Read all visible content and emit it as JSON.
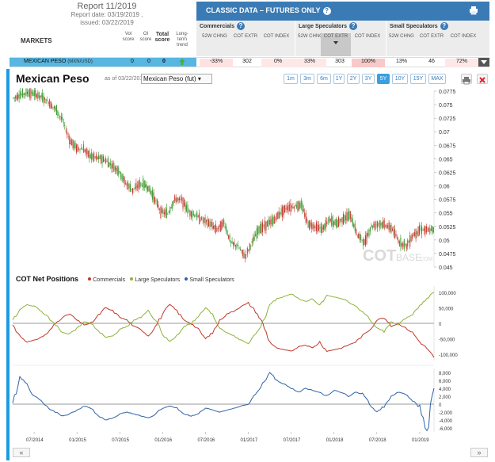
{
  "report": {
    "title": "Report 11/2019",
    "report_date": "Report date: 03/19/2019 ,",
    "issued": "issued: 03/22/2019"
  },
  "markets_label": "MARKETS",
  "score_headers": {
    "vol": "Vol score",
    "oi": "OI score",
    "total": "Total score",
    "trend": "Long-term trend"
  },
  "classic_bar": {
    "title": "CLASSIC DATA – FUTURES ONLY"
  },
  "categories": [
    {
      "title": "Commercials",
      "cols": [
        "52W CHNG",
        "COT EXTR",
        "COT INDEX"
      ]
    },
    {
      "title": "Large Speculators",
      "cols": [
        "52W CHNG",
        "COT EXTR",
        "COT INDEX"
      ]
    },
    {
      "title": "Small Speculators",
      "cols": [
        "52W CHNG",
        "COT EXTR",
        "COT INDEX"
      ]
    }
  ],
  "row": {
    "name": "MEXICAN PESO",
    "sub": "(MXN/USD)",
    "vol": "0",
    "oi": "0",
    "total": "0",
    "cells": [
      "-33%",
      "302",
      "0%",
      "33%",
      "303",
      "100%",
      "13%",
      "46",
      "72%"
    ]
  },
  "chart_header": {
    "title": "Mexican Peso",
    "as_of": "as of 03/22/2019",
    "symbol": "Mexican Peso (fut)",
    "ranges": [
      "1m",
      "3m",
      "6m",
      "1Y",
      "2Y",
      "3Y",
      "5Y",
      "10Y",
      "15Y",
      "MAX"
    ],
    "active_range": "5Y"
  },
  "legend": {
    "title": "COT Net Positions",
    "items": [
      "Commercials",
      "Large Speculators",
      "Small Speculators"
    ]
  },
  "watermark": {
    "brand": "COT",
    "suffix": "BASE",
    "domain": ".COM"
  },
  "colors": {
    "commercials": "#c0392b",
    "large_spec": "#8db33a",
    "small_spec": "#2e62a8",
    "accent": "#1e9be0",
    "candle_up": "#3a9a2e",
    "candle_down": "#c0392b"
  },
  "chart_data": [
    {
      "type": "line",
      "title": "Mexican Peso",
      "note": "price candlesticks (approximate close values)",
      "x": [
        "2014-04",
        "2014-05",
        "2014-06",
        "2014-07",
        "2014-08",
        "2014-09",
        "2014-10",
        "2014-11",
        "2014-12",
        "2015-01",
        "2015-02",
        "2015-03",
        "2015-04",
        "2015-05",
        "2015-06",
        "2015-07",
        "2015-08",
        "2015-09",
        "2015-10",
        "2015-11",
        "2015-12",
        "2016-01",
        "2016-02",
        "2016-03",
        "2016-04",
        "2016-05",
        "2016-06",
        "2016-07",
        "2016-08",
        "2016-09",
        "2016-10",
        "2016-11",
        "2016-12",
        "2017-01",
        "2017-02",
        "2017-03",
        "2017-04",
        "2017-05",
        "2017-06",
        "2017-07",
        "2017-08",
        "2017-09",
        "2017-10",
        "2017-11",
        "2017-12",
        "2018-01",
        "2018-02",
        "2018-03",
        "2018-04",
        "2018-05",
        "2018-06",
        "2018-07",
        "2018-08",
        "2018-09",
        "2018-10",
        "2018-11",
        "2018-12",
        "2019-01",
        "2019-02",
        "2019-03"
      ],
      "series": [
        {
          "values": [
            0.0762,
            0.0768,
            0.0772,
            0.077,
            0.0764,
            0.0755,
            0.0742,
            0.0722,
            0.0685,
            0.067,
            0.0668,
            0.0655,
            0.0652,
            0.0648,
            0.0638,
            0.0628,
            0.0605,
            0.0592,
            0.0603,
            0.06,
            0.058,
            0.0553,
            0.0548,
            0.0575,
            0.0574,
            0.0552,
            0.0545,
            0.0537,
            0.053,
            0.052,
            0.0532,
            0.0495,
            0.0488,
            0.047,
            0.0495,
            0.052,
            0.0528,
            0.0535,
            0.055,
            0.056,
            0.0562,
            0.0565,
            0.053,
            0.0525,
            0.052,
            0.0537,
            0.053,
            0.054,
            0.0545,
            0.051,
            0.0495,
            0.0525,
            0.053,
            0.0528,
            0.052,
            0.0495,
            0.049,
            0.051,
            0.052,
            0.0518
          ]
        }
      ],
      "ylim": [
        0.045,
        0.0775
      ],
      "yticks": [
        0.0775,
        0.075,
        0.0725,
        0.07,
        0.0675,
        0.065,
        0.0625,
        0.06,
        0.0575,
        0.055,
        0.0525,
        0.05,
        0.0475,
        0.045
      ]
    },
    {
      "type": "line",
      "title": "COT Net Positions",
      "x": [
        "2014-04",
        "2014-05",
        "2014-06",
        "2014-07",
        "2014-08",
        "2014-09",
        "2014-10",
        "2014-11",
        "2014-12",
        "2015-01",
        "2015-02",
        "2015-03",
        "2015-04",
        "2015-05",
        "2015-06",
        "2015-07",
        "2015-08",
        "2015-09",
        "2015-10",
        "2015-11",
        "2015-12",
        "2016-01",
        "2016-02",
        "2016-03",
        "2016-04",
        "2016-05",
        "2016-06",
        "2016-07",
        "2016-08",
        "2016-09",
        "2016-10",
        "2016-11",
        "2016-12",
        "2017-01",
        "2017-02",
        "2017-03",
        "2017-04",
        "2017-05",
        "2017-06",
        "2017-07",
        "2017-08",
        "2017-09",
        "2017-10",
        "2017-11",
        "2017-12",
        "2018-01",
        "2018-02",
        "2018-03",
        "2018-04",
        "2018-05",
        "2018-06",
        "2018-07",
        "2018-08",
        "2018-09",
        "2018-10",
        "2018-11",
        "2018-12",
        "2019-01",
        "2019-02",
        "2019-03"
      ],
      "series": [
        {
          "name": "Commercials",
          "values": [
            -5000,
            -40000,
            -60000,
            -55000,
            -45000,
            -30000,
            0,
            20000,
            30000,
            10000,
            -5000,
            0,
            25000,
            50000,
            40000,
            20000,
            10000,
            -10000,
            -20000,
            -40000,
            -10000,
            30000,
            60000,
            40000,
            10000,
            0,
            -20000,
            -50000,
            -30000,
            10000,
            30000,
            40000,
            55000,
            65000,
            40000,
            0,
            -60000,
            -80000,
            -85000,
            -90000,
            -75000,
            -70000,
            -80000,
            -60000,
            -90000,
            -85000,
            -80000,
            -70000,
            -60000,
            -40000,
            -20000,
            10000,
            20000,
            -10000,
            0,
            -15000,
            -30000,
            -60000,
            -80000,
            -110000
          ]
        },
        {
          "name": "Large Speculators",
          "values": [
            10000,
            45000,
            60000,
            55000,
            40000,
            20000,
            -5000,
            -30000,
            -35000,
            -15000,
            5000,
            0,
            -25000,
            -45000,
            -40000,
            -20000,
            -10000,
            10000,
            20000,
            40000,
            10000,
            -35000,
            -60000,
            -40000,
            -10000,
            0,
            20000,
            50000,
            25000,
            -15000,
            -30000,
            -40000,
            -55000,
            -65000,
            -35000,
            0,
            60000,
            80000,
            85000,
            95000,
            80000,
            70000,
            80000,
            60000,
            90000,
            85000,
            80000,
            70000,
            55000,
            35000,
            15000,
            -15000,
            -25000,
            5000,
            -5000,
            15000,
            30000,
            55000,
            80000,
            100000
          ]
        },
        {
          "name": "Small Speculators",
          "values": [
            0,
            7000,
            5000,
            2000,
            1000,
            -1000,
            -2000,
            -3000,
            -2500,
            -1500,
            -500,
            -1000,
            -3000,
            -4000,
            -3500,
            -2500,
            -2000,
            -2500,
            -3000,
            -3500,
            -2500,
            -1000,
            -500,
            -1000,
            -2500,
            -3000,
            -2500,
            -1000,
            -1500,
            -2000,
            -1500,
            -1000,
            -500,
            0,
            2500,
            5000,
            8000,
            6000,
            5000,
            4000,
            3000,
            4000,
            3500,
            3000,
            2000,
            3500,
            3000,
            2000,
            3000,
            2500,
            0,
            -2000,
            -500,
            2000,
            3000,
            2500,
            1000,
            -1000,
            -7000,
            4000
          ]
        }
      ],
      "ylim_commercials": [
        -120000,
        120000
      ],
      "yticks_commercials": [
        100000,
        50000,
        0,
        -50000,
        -100000
      ],
      "ylim_small": [
        -7000,
        9000
      ],
      "yticks_small": [
        8000,
        6000,
        4000,
        2000,
        0,
        -2000,
        -4000,
        -6000
      ]
    }
  ],
  "x_axis_labels": [
    "07/2014",
    "01/2015",
    "07/2015",
    "01/2016",
    "07/2016",
    "01/2017",
    "07/2017",
    "01/2018",
    "07/2018",
    "01/2019"
  ],
  "nav": {
    "prev": "«",
    "next": "»"
  }
}
